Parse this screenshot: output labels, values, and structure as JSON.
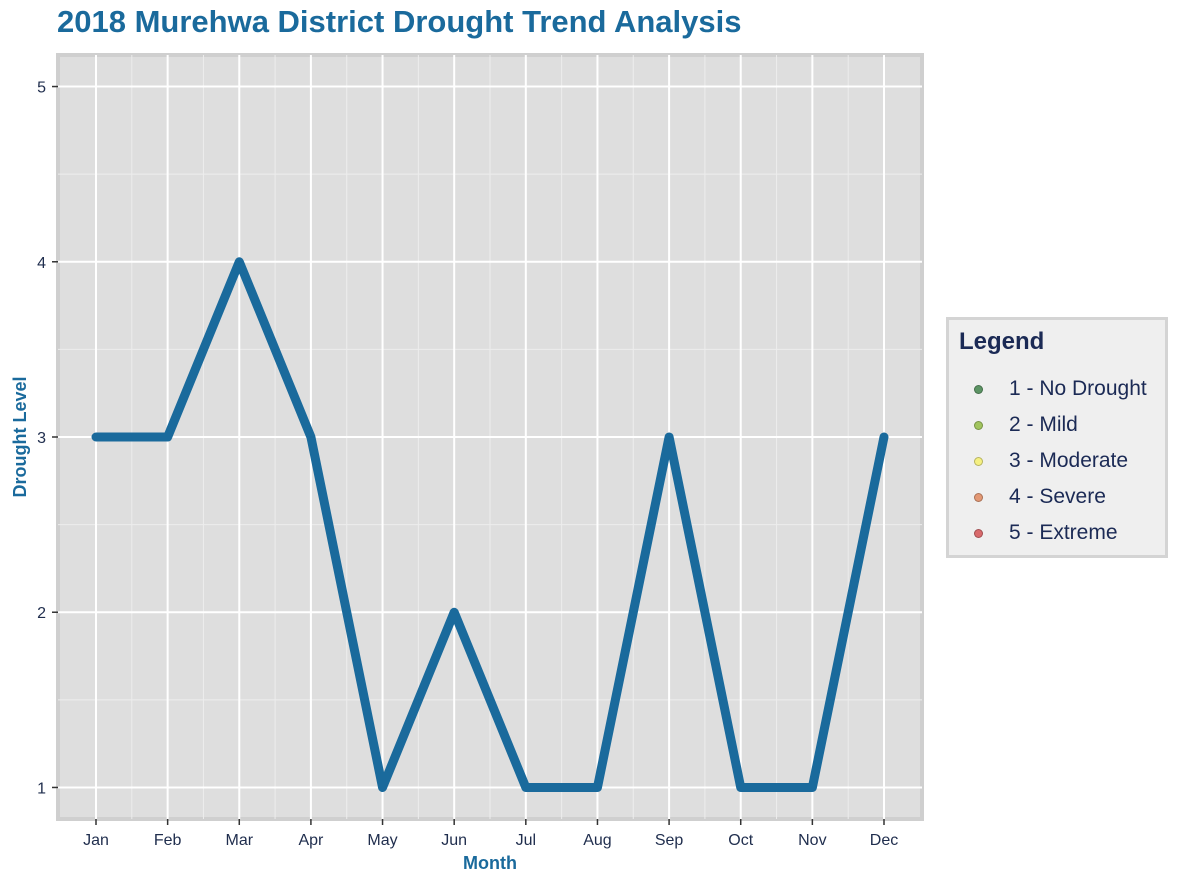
{
  "title": "2018 Murehwa District Drought Trend Analysis",
  "chart_data": {
    "type": "line",
    "title": "2018 Murehwa District Drought Trend Analysis",
    "xlabel": "Month",
    "ylabel": "Drought Level",
    "categories": [
      "Jan",
      "Feb",
      "Mar",
      "Apr",
      "May",
      "Jun",
      "Jul",
      "Aug",
      "Sep",
      "Oct",
      "Nov",
      "Dec"
    ],
    "series": [
      {
        "values": [
          3,
          3,
          4,
          3,
          1,
          2,
          1,
          1,
          3,
          1,
          1,
          3
        ],
        "color": "#1a6a9c"
      }
    ],
    "yticks": [
      1,
      2,
      3,
      4,
      5
    ],
    "ylim": [
      0.82,
      5.18
    ],
    "grid": true,
    "background": "#dedede",
    "legend_position": "right"
  },
  "legend": {
    "title": "Legend",
    "items": [
      {
        "label": "1 - No Drought",
        "color": "#5c9464"
      },
      {
        "label": "2 - Mild",
        "color": "#a1c45e"
      },
      {
        "label": "3 - Moderate",
        "color": "#f5f082"
      },
      {
        "label": "4 - Severe",
        "color": "#e39874"
      },
      {
        "label": "5 - Extreme",
        "color": "#d96a6c"
      }
    ]
  }
}
